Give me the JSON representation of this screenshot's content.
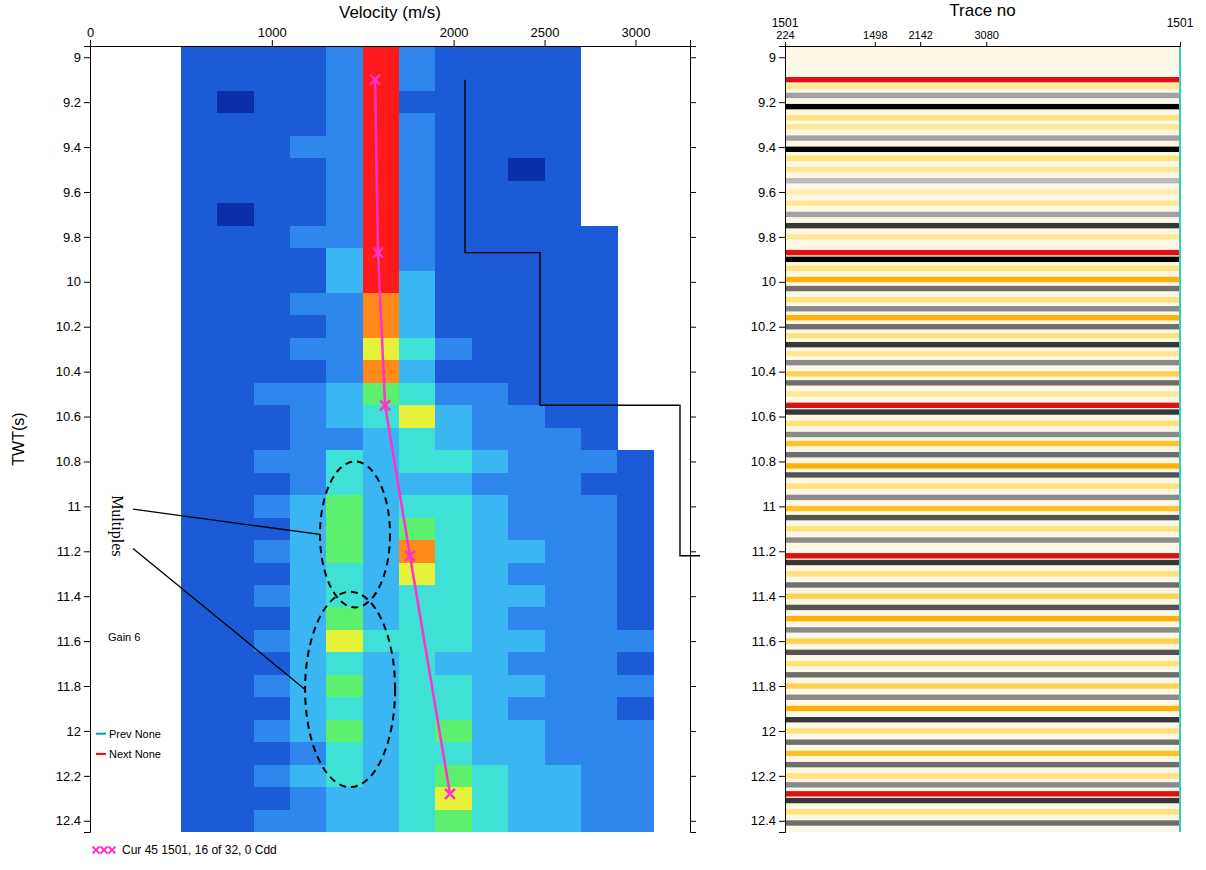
{
  "chart_data": [
    {
      "type": "heatmap",
      "x_label": "Velocity (m/s)",
      "y_label": "TWT(s)",
      "xlim": [
        0,
        3300
      ],
      "xticks": [
        0,
        1000,
        2000,
        2500,
        3000
      ],
      "ylim": [
        8.95,
        12.45
      ],
      "yticks": [
        9,
        9.2,
        9.4,
        9.6,
        9.8,
        10,
        10.2,
        10.4,
        10.6,
        10.8,
        11,
        11.2,
        11.4,
        11.6,
        11.8,
        12,
        12.2,
        12.4
      ],
      "x": [
        600,
        800,
        1000,
        1200,
        1400,
        1600,
        1800,
        2000,
        2200,
        2400,
        2600,
        2800,
        3000
      ],
      "y": [
        9.0,
        9.1,
        9.2,
        9.3,
        9.4,
        9.5,
        9.6,
        9.7,
        9.8,
        9.9,
        10.0,
        10.1,
        10.2,
        10.3,
        10.4,
        10.5,
        10.6,
        10.7,
        10.8,
        10.9,
        11.0,
        11.1,
        11.2,
        11.3,
        11.4,
        11.5,
        11.6,
        11.7,
        11.8,
        11.9,
        12.0,
        12.1,
        12.2,
        12.3,
        12.4
      ],
      "cells": [
        [
          2,
          2,
          2,
          2,
          3,
          9,
          3,
          2,
          2,
          2,
          2,
          null,
          null
        ],
        [
          2,
          2,
          2,
          2,
          3,
          9,
          3,
          2,
          2,
          2,
          2,
          null,
          null
        ],
        [
          2,
          1,
          2,
          2,
          3,
          9,
          2,
          2,
          2,
          2,
          2,
          null,
          null
        ],
        [
          2,
          2,
          2,
          2,
          3,
          9,
          3,
          2,
          2,
          2,
          2,
          null,
          null
        ],
        [
          2,
          2,
          2,
          3,
          3,
          9,
          3,
          2,
          2,
          2,
          2,
          null,
          null
        ],
        [
          2,
          2,
          2,
          2,
          3,
          9,
          3,
          2,
          2,
          1,
          2,
          null,
          null
        ],
        [
          2,
          2,
          2,
          2,
          3,
          9,
          3,
          2,
          2,
          2,
          2,
          null,
          null
        ],
        [
          2,
          1,
          2,
          2,
          3,
          9,
          3,
          2,
          2,
          2,
          2,
          null,
          null
        ],
        [
          2,
          2,
          2,
          3,
          3,
          9,
          3,
          2,
          2,
          2,
          2,
          2,
          null
        ],
        [
          2,
          2,
          2,
          2,
          4,
          9,
          3,
          2,
          2,
          2,
          2,
          2,
          null
        ],
        [
          2,
          2,
          2,
          2,
          4,
          9,
          4,
          2,
          2,
          2,
          2,
          2,
          null
        ],
        [
          2,
          2,
          2,
          3,
          3,
          8,
          4,
          2,
          2,
          2,
          2,
          2,
          null
        ],
        [
          2,
          2,
          2,
          2,
          3,
          8,
          4,
          2,
          2,
          2,
          2,
          2,
          null
        ],
        [
          2,
          2,
          2,
          3,
          3,
          7,
          5,
          3,
          2,
          2,
          2,
          2,
          null
        ],
        [
          2,
          2,
          2,
          2,
          3,
          8,
          4,
          2,
          2,
          2,
          2,
          2,
          null
        ],
        [
          2,
          2,
          3,
          3,
          4,
          6,
          5,
          3,
          3,
          2,
          2,
          2,
          null
        ],
        [
          2,
          2,
          2,
          3,
          4,
          5,
          7,
          4,
          3,
          3,
          2,
          2,
          null
        ],
        [
          2,
          2,
          2,
          3,
          3,
          4,
          5,
          4,
          3,
          3,
          3,
          2,
          null
        ],
        [
          2,
          2,
          3,
          3,
          5,
          4,
          5,
          5,
          4,
          3,
          3,
          3,
          2
        ],
        [
          2,
          2,
          2,
          3,
          5,
          4,
          4,
          4,
          3,
          3,
          3,
          2,
          2
        ],
        [
          2,
          2,
          3,
          4,
          6,
          4,
          5,
          5,
          4,
          3,
          3,
          3,
          2
        ],
        [
          2,
          2,
          2,
          4,
          6,
          4,
          6,
          5,
          4,
          3,
          3,
          3,
          2
        ],
        [
          2,
          2,
          3,
          4,
          6,
          4,
          8,
          5,
          4,
          4,
          3,
          3,
          2
        ],
        [
          2,
          2,
          2,
          4,
          5,
          4,
          7,
          5,
          4,
          3,
          3,
          3,
          2
        ],
        [
          2,
          2,
          3,
          4,
          5,
          4,
          5,
          5,
          4,
          4,
          3,
          3,
          2
        ],
        [
          2,
          2,
          2,
          4,
          6,
          4,
          5,
          5,
          4,
          3,
          3,
          3,
          2
        ],
        [
          2,
          2,
          3,
          4,
          7,
          5,
          5,
          5,
          4,
          4,
          3,
          3,
          3
        ],
        [
          2,
          2,
          2,
          4,
          5,
          4,
          5,
          4,
          4,
          3,
          3,
          3,
          2
        ],
        [
          2,
          2,
          3,
          4,
          6,
          4,
          5,
          5,
          4,
          4,
          3,
          3,
          3
        ],
        [
          2,
          2,
          2,
          4,
          5,
          4,
          5,
          5,
          4,
          3,
          3,
          3,
          2
        ],
        [
          2,
          2,
          3,
          4,
          6,
          4,
          5,
          6,
          4,
          4,
          3,
          3,
          3
        ],
        [
          2,
          2,
          2,
          3,
          5,
          4,
          5,
          5,
          4,
          4,
          3,
          3,
          3
        ],
        [
          2,
          2,
          3,
          4,
          5,
          4,
          5,
          6,
          5,
          4,
          4,
          3,
          3
        ],
        [
          2,
          2,
          2,
          3,
          4,
          4,
          5,
          7,
          5,
          4,
          4,
          3,
          3
        ],
        [
          2,
          2,
          3,
          3,
          4,
          4,
          5,
          6,
          5,
          4,
          4,
          3,
          3
        ]
      ],
      "cell_range": [
        0,
        9
      ],
      "series": [
        {
          "name": "Cur 45 1501, 16 of 32, 0 Cdd",
          "color": "#ff33cc",
          "marker": "x",
          "line_style": "solid",
          "x": [
            1568,
            1584,
            1623,
            1760,
            1980
          ],
          "values": [
            9.1,
            9.87,
            10.55,
            11.22,
            12.28
          ]
        }
      ],
      "legend": "bottom-left",
      "annotations": [
        {
          "text": "Multiples",
          "t": 10.95,
          "regions": [
            {
              "x": [
                1265,
                1650
              ],
              "t": [
                10.8,
                11.45
              ]
            },
            {
              "x": [
                1183,
                1678
              ],
              "t": [
                11.38,
                12.25
              ]
            }
          ]
        },
        {
          "text": "Gain 6",
          "t": 11.6
        },
        {
          "text": "Prev None",
          "t": 12.03,
          "color": "#00a3a3"
        },
        {
          "text": "Next None",
          "t": 12.12,
          "color": "#ff0000"
        }
      ]
    },
    {
      "type": "gather",
      "x_label": "Trace no",
      "xlim": [
        224,
        5830
      ],
      "xticks": [
        224,
        1498,
        2142,
        3080
      ],
      "cdp": [
        1501,
        1501
      ],
      "ylim": [
        8.95,
        12.45
      ],
      "yticks": [
        9,
        9.2,
        9.4,
        9.6,
        9.8,
        10,
        10.2,
        10.4,
        10.6,
        10.8,
        11,
        11.2,
        11.4,
        11.6,
        11.8,
        12,
        12.2,
        12.4
      ],
      "amplitude_range": [
        -1,
        1
      ],
      "events": [
        {
          "t": 9.1,
          "amplitude": 1
        },
        {
          "t": 9.13,
          "amplitude": 0.4
        },
        {
          "t": 9.17,
          "amplitude": -0.4
        },
        {
          "t": 9.22,
          "amplitude": -1
        },
        {
          "t": 9.27,
          "amplitude": 0.5
        },
        {
          "t": 9.31,
          "amplitude": 0.4
        },
        {
          "t": 9.36,
          "amplitude": -0.4
        },
        {
          "t": 9.41,
          "amplitude": -1
        },
        {
          "t": 9.45,
          "amplitude": 0.5
        },
        {
          "t": 9.5,
          "amplitude": 0.4
        },
        {
          "t": 9.55,
          "amplitude": -0.3
        },
        {
          "t": 9.6,
          "amplitude": 0.3
        },
        {
          "t": 9.65,
          "amplitude": 0.4
        },
        {
          "t": 9.7,
          "amplitude": -0.4
        },
        {
          "t": 9.75,
          "amplitude": -0.8
        },
        {
          "t": 9.8,
          "amplitude": 0.4
        },
        {
          "t": 9.87,
          "amplitude": 1
        },
        {
          "t": 9.9,
          "amplitude": -1
        },
        {
          "t": 9.94,
          "amplitude": 0.5
        },
        {
          "t": 9.99,
          "amplitude": 0.8
        },
        {
          "t": 10.03,
          "amplitude": -0.6
        },
        {
          "t": 10.08,
          "amplitude": 0.5
        },
        {
          "t": 10.12,
          "amplitude": -0.5
        },
        {
          "t": 10.16,
          "amplitude": 0.8
        },
        {
          "t": 10.2,
          "amplitude": -0.6
        },
        {
          "t": 10.24,
          "amplitude": 0.5
        },
        {
          "t": 10.28,
          "amplitude": -0.8
        },
        {
          "t": 10.32,
          "amplitude": 0.4
        },
        {
          "t": 10.36,
          "amplitude": -0.5
        },
        {
          "t": 10.41,
          "amplitude": 0.6
        },
        {
          "t": 10.45,
          "amplitude": -0.6
        },
        {
          "t": 10.5,
          "amplitude": 0.4
        },
        {
          "t": 10.55,
          "amplitude": 1
        },
        {
          "t": 10.58,
          "amplitude": -0.8
        },
        {
          "t": 10.63,
          "amplitude": 0.5
        },
        {
          "t": 10.68,
          "amplitude": -0.5
        },
        {
          "t": 10.72,
          "amplitude": 0.7
        },
        {
          "t": 10.77,
          "amplitude": -0.6
        },
        {
          "t": 10.82,
          "amplitude": 0.8
        },
        {
          "t": 10.86,
          "amplitude": -0.7
        },
        {
          "t": 10.91,
          "amplitude": 0.5
        },
        {
          "t": 10.96,
          "amplitude": -0.5
        },
        {
          "t": 11.01,
          "amplitude": 0.7
        },
        {
          "t": 11.05,
          "amplitude": -0.7
        },
        {
          "t": 11.1,
          "amplitude": 0.5
        },
        {
          "t": 11.15,
          "amplitude": -0.5
        },
        {
          "t": 11.22,
          "amplitude": 1
        },
        {
          "t": 11.25,
          "amplitude": -0.8
        },
        {
          "t": 11.3,
          "amplitude": 0.5
        },
        {
          "t": 11.35,
          "amplitude": -0.6
        },
        {
          "t": 11.4,
          "amplitude": 0.6
        },
        {
          "t": 11.45,
          "amplitude": -0.7
        },
        {
          "t": 11.5,
          "amplitude": 0.8
        },
        {
          "t": 11.55,
          "amplitude": -0.5
        },
        {
          "t": 11.6,
          "amplitude": 0.6
        },
        {
          "t": 11.65,
          "amplitude": -0.7
        },
        {
          "t": 11.7,
          "amplitude": 0.5
        },
        {
          "t": 11.75,
          "amplitude": -0.6
        },
        {
          "t": 11.8,
          "amplitude": 0.6
        },
        {
          "t": 11.85,
          "amplitude": -0.5
        },
        {
          "t": 11.9,
          "amplitude": 0.8
        },
        {
          "t": 11.95,
          "amplitude": -0.8
        },
        {
          "t": 12.0,
          "amplitude": 0.5
        },
        {
          "t": 12.05,
          "amplitude": -0.6
        },
        {
          "t": 12.1,
          "amplitude": 0.7
        },
        {
          "t": 12.15,
          "amplitude": -0.6
        },
        {
          "t": 12.2,
          "amplitude": 0.5
        },
        {
          "t": 12.24,
          "amplitude": -0.5
        },
        {
          "t": 12.28,
          "amplitude": 1
        },
        {
          "t": 12.31,
          "amplitude": -0.8
        },
        {
          "t": 12.36,
          "amplitude": 0.5
        },
        {
          "t": 12.41,
          "amplitude": -0.6
        }
      ]
    }
  ]
}
